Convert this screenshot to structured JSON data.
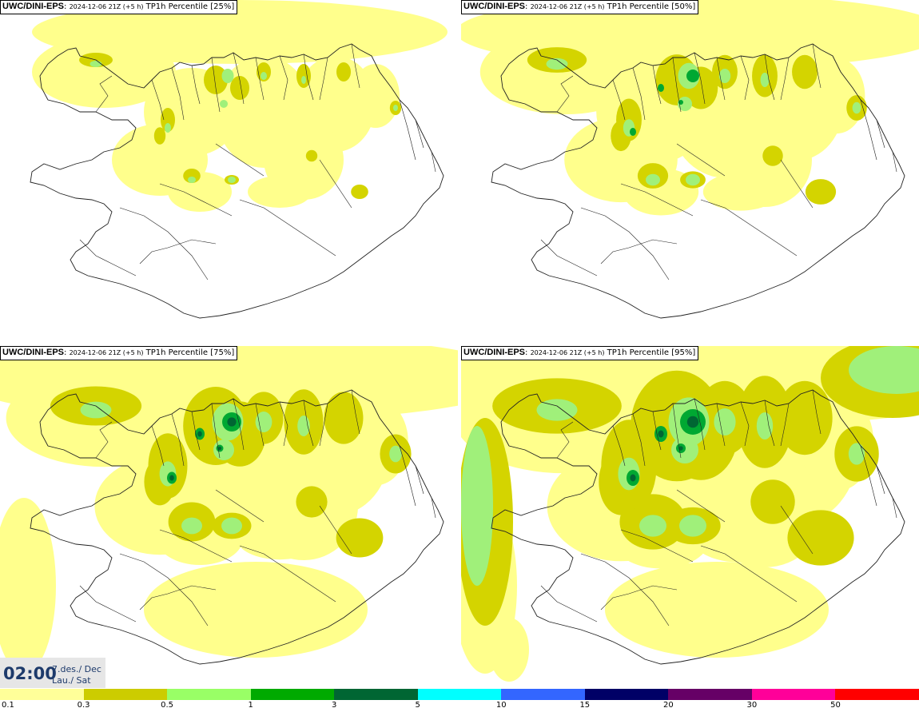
{
  "panels": [
    {
      "model": "UWC/DINI-EPS",
      "run": "2024-12-06 21Z (+5 h)",
      "product": "TP1h Percentile",
      "percentile": "[25%]",
      "level": 0
    },
    {
      "model": "UWC/DINI-EPS",
      "run": "2024-12-06 21Z (+5 h)",
      "product": "TP1h Percentile",
      "percentile": "[50%]",
      "level": 1
    },
    {
      "model": "UWC/DINI-EPS",
      "run": "2024-12-06 21Z (+5 h)",
      "product": "TP1h Percentile",
      "percentile": "[75%]",
      "level": 2
    },
    {
      "model": "UWC/DINI-EPS",
      "run": "2024-12-06 21Z (+5 h)",
      "product": "TP1h Percentile",
      "percentile": "[95%]",
      "level": 3
    }
  ],
  "valid_time": {
    "time": "02:00",
    "date_line1": "7.des./ Dec",
    "date_line2": "Lau./ Sat"
  },
  "colorbar": {
    "colors": [
      "#ffff99",
      "#cccc00",
      "#99ff66",
      "#00aa00",
      "#006633",
      "#00ffff",
      "#3366ff",
      "#000066",
      "#660066",
      "#ff0099",
      "#ff0000"
    ],
    "labels": [
      "0.1",
      "0.3",
      "0.5",
      "1",
      "3",
      "5",
      "10",
      "15",
      "20",
      "30",
      "50"
    ]
  },
  "map_colors": {
    "light": "#ffff8c",
    "olive": "#d4d400",
    "lightgreen": "#a0f07a",
    "green": "#00a832",
    "darkgreen": "#006633",
    "outline": "#222222"
  }
}
